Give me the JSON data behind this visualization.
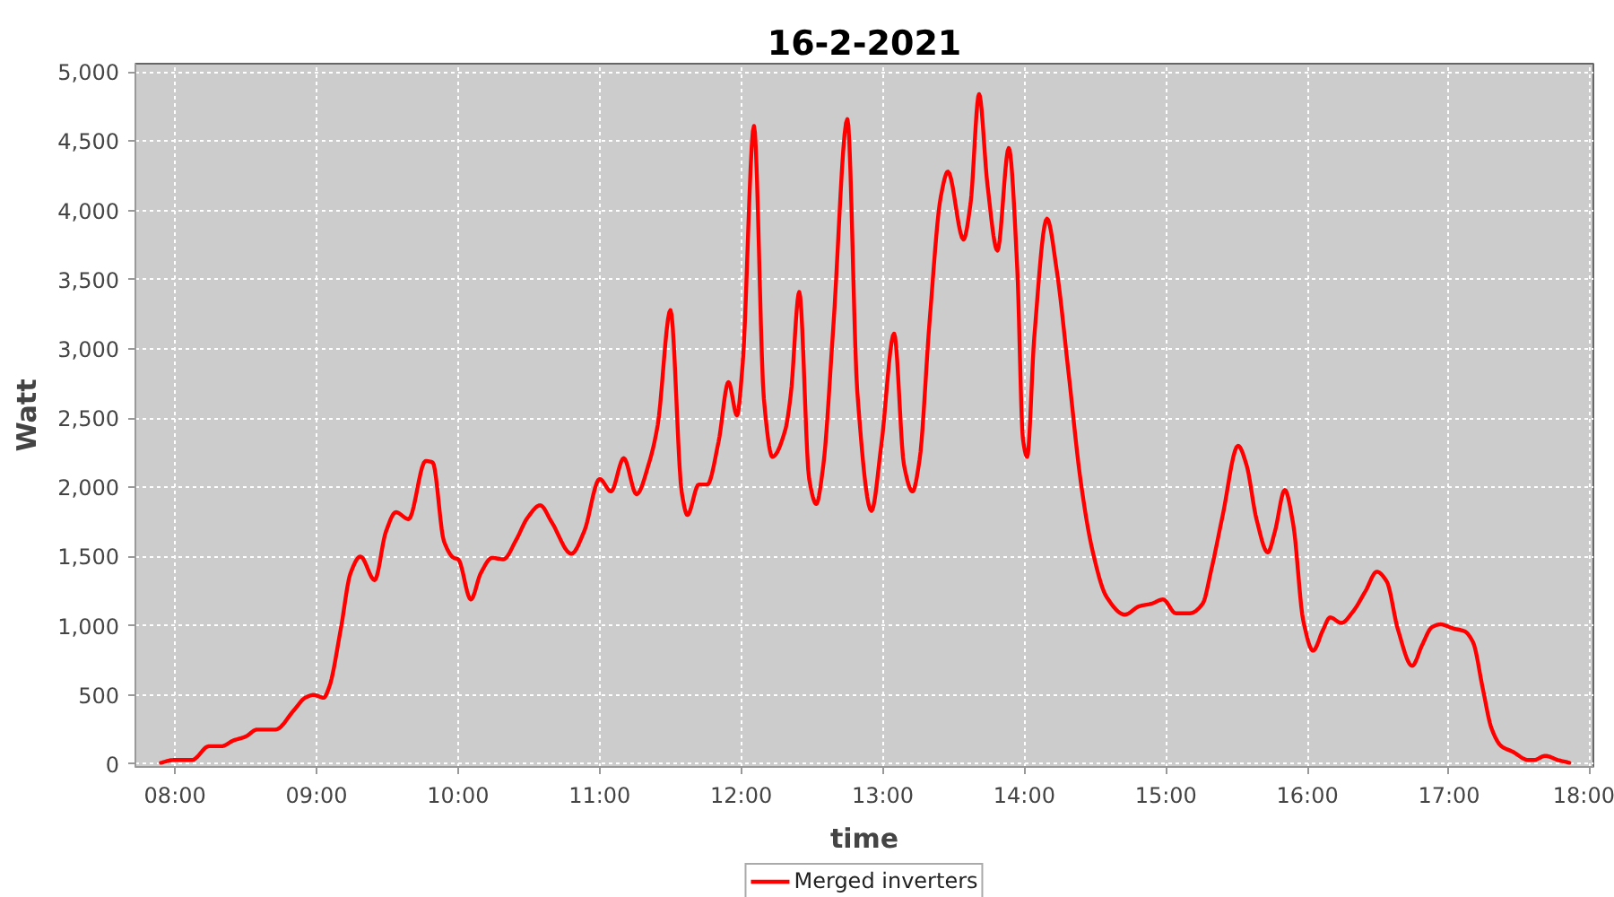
{
  "chart_data": {
    "type": "line",
    "title": "16-2-2021",
    "xlabel": "time",
    "ylabel": "Watt",
    "x": [
      7.9,
      7.99,
      8.12,
      8.24,
      8.33,
      8.41,
      8.5,
      8.58,
      8.71,
      8.84,
      8.92,
      8.98,
      9.05,
      9.09,
      9.17,
      9.24,
      9.31,
      9.41,
      9.49,
      9.56,
      9.65,
      9.77,
      9.82,
      9.9,
      9.97,
      10.0,
      10.09,
      10.16,
      10.24,
      10.32,
      10.41,
      10.49,
      10.58,
      10.66,
      10.8,
      10.89,
      11.0,
      11.08,
      11.17,
      11.26,
      11.35,
      11.41,
      11.5,
      11.58,
      11.62,
      11.7,
      11.76,
      11.84,
      11.91,
      11.97,
      12.01,
      12.09,
      12.16,
      12.22,
      12.31,
      12.35,
      12.41,
      12.48,
      12.53,
      12.58,
      12.65,
      12.75,
      12.82,
      12.92,
      12.99,
      13.08,
      13.15,
      13.21,
      13.26,
      13.33,
      13.41,
      13.46,
      13.57,
      13.62,
      13.68,
      13.74,
      13.81,
      13.89,
      13.95,
      13.99,
      14.02,
      14.07,
      14.16,
      14.23,
      14.31,
      14.4,
      14.48,
      14.58,
      14.71,
      14.81,
      14.9,
      14.98,
      15.07,
      15.17,
      15.26,
      15.32,
      15.4,
      15.51,
      15.57,
      15.64,
      15.72,
      15.77,
      15.84,
      15.9,
      15.97,
      16.04,
      16.11,
      16.16,
      16.24,
      16.32,
      16.41,
      16.49,
      16.56,
      16.64,
      16.74,
      16.81,
      16.88,
      16.94,
      17.03,
      17.11,
      17.17,
      17.24,
      17.3,
      17.37,
      17.45,
      17.56,
      17.6,
      17.68,
      17.77,
      17.85
    ],
    "series": [
      {
        "name": "Merged inverters",
        "color": "#ff0000",
        "values": [
          10,
          30,
          30,
          130,
          130,
          170,
          200,
          250,
          250,
          390,
          480,
          500,
          480,
          560,
          970,
          1380,
          1500,
          1330,
          1680,
          1820,
          1770,
          2190,
          2180,
          1610,
          1490,
          1480,
          1190,
          1380,
          1490,
          1480,
          1620,
          1780,
          1870,
          1750,
          1520,
          1680,
          2060,
          1970,
          2210,
          1950,
          2180,
          2450,
          3280,
          1960,
          1800,
          2020,
          2020,
          2330,
          2760,
          2520,
          2890,
          4610,
          2640,
          2220,
          2410,
          2670,
          3410,
          2060,
          1880,
          2160,
          3150,
          4660,
          2690,
          1830,
          2310,
          3110,
          2160,
          1970,
          2200,
          3190,
          4100,
          4280,
          3790,
          4050,
          4840,
          4180,
          3710,
          4450,
          3580,
          2350,
          2220,
          3080,
          3940,
          3560,
          2850,
          2030,
          1550,
          1210,
          1080,
          1140,
          1160,
          1190,
          1090,
          1090,
          1160,
          1400,
          1790,
          2300,
          2160,
          1770,
          1530,
          1680,
          1980,
          1730,
          1040,
          820,
          970,
          1060,
          1020,
          1100,
          1250,
          1390,
          1320,
          970,
          710,
          860,
          990,
          1010,
          980,
          960,
          880,
          540,
          260,
          130,
          90,
          30,
          30,
          60,
          30,
          10
        ]
      }
    ],
    "xlim": [
      7.72,
      18.02
    ],
    "ylim": [
      -20,
      5060
    ],
    "xticks": [
      {
        "value": 8,
        "label": "08:00"
      },
      {
        "value": 9,
        "label": "09:00"
      },
      {
        "value": 10,
        "label": "10:00"
      },
      {
        "value": 11,
        "label": "11:00"
      },
      {
        "value": 12,
        "label": "12:00"
      },
      {
        "value": 13,
        "label": "13:00"
      },
      {
        "value": 14,
        "label": "14:00"
      },
      {
        "value": 15,
        "label": "15:00"
      },
      {
        "value": 16,
        "label": "16:00"
      },
      {
        "value": 17,
        "label": "17:00"
      },
      {
        "value": 18,
        "label": "18:00"
      }
    ],
    "yticks": [
      0,
      500,
      {
        "value": 1000,
        "label": "1,000"
      },
      {
        "value": 1500,
        "label": "1,500"
      },
      {
        "value": 2000,
        "label": "2,000"
      },
      {
        "value": 2500,
        "label": "2,500"
      },
      {
        "value": 3000,
        "label": "3,000"
      },
      {
        "value": 3500,
        "label": "3,500"
      },
      {
        "value": 4000,
        "label": "4,000"
      },
      {
        "value": 4500,
        "label": "4,500"
      },
      {
        "value": 5000,
        "label": "5,000"
      }
    ],
    "grid": true,
    "legend": "bottom"
  }
}
